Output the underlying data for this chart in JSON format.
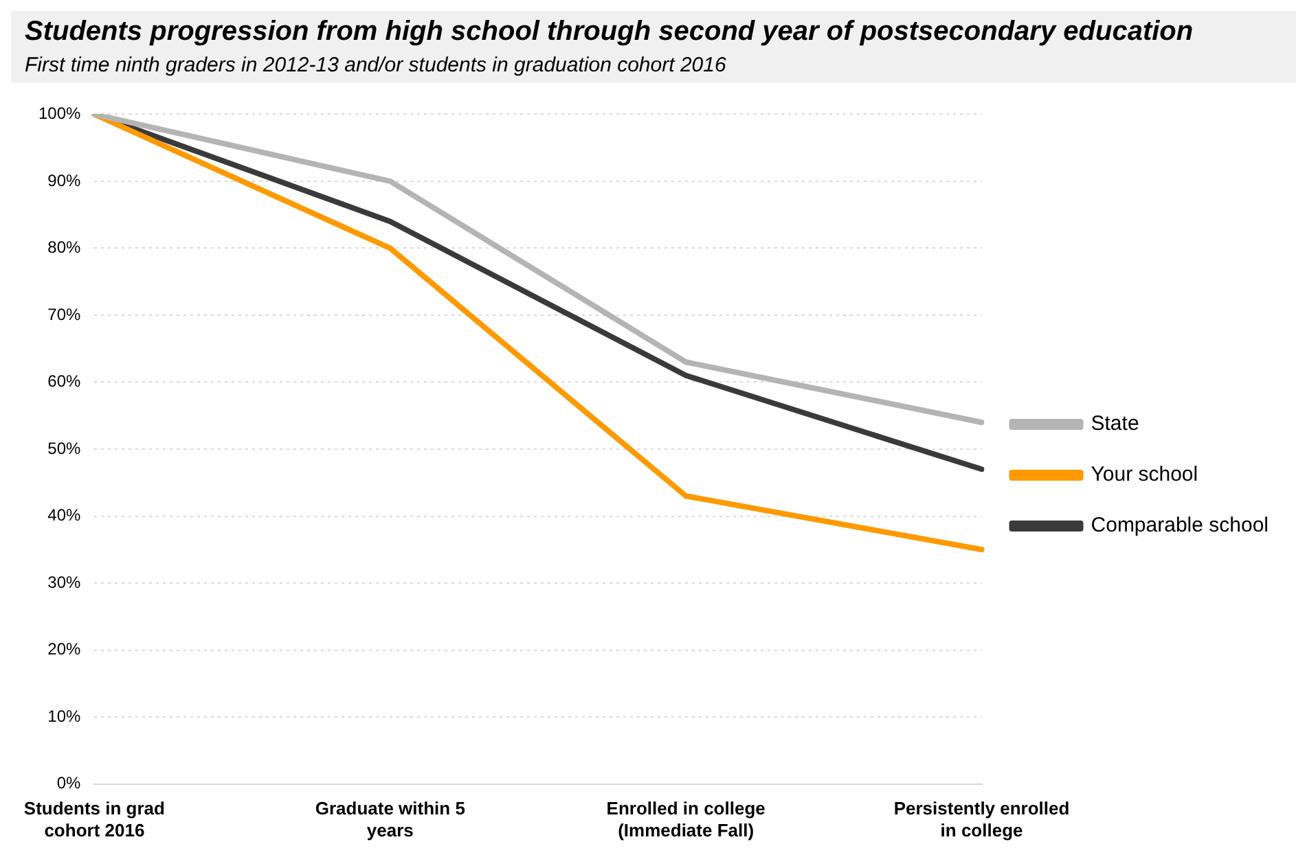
{
  "chart_data": {
    "type": "line",
    "title": "Students progression from high school through second year of postsecondary education",
    "subtitle": "First time ninth graders in 2012-13 and/or students in graduation cohort 2016",
    "categories": [
      "Students in grad cohort 2016",
      "Graduate within 5 years",
      "Enrolled in college (Immediate Fall)",
      "Persistently enrolled in college"
    ],
    "series": [
      {
        "name": "State",
        "color": "#b4b4b4",
        "values": [
          100,
          90,
          63,
          54
        ]
      },
      {
        "name": "Your school",
        "color": "#ff9900",
        "values": [
          100,
          80,
          43,
          35
        ]
      },
      {
        "name": "Comparable school",
        "color": "#3a3a3a",
        "values": [
          100,
          84,
          61,
          47
        ]
      }
    ],
    "ylim": [
      0,
      100
    ],
    "yticks": [
      {
        "value": 0,
        "label": "0%"
      },
      {
        "value": 10,
        "label": "10%"
      },
      {
        "value": 20,
        "label": "20%"
      },
      {
        "value": 30,
        "label": "30%"
      },
      {
        "value": 40,
        "label": "40%"
      },
      {
        "value": 50,
        "label": "50%"
      },
      {
        "value": 60,
        "label": "60%"
      },
      {
        "value": 70,
        "label": "70%"
      },
      {
        "value": 80,
        "label": "80%"
      },
      {
        "value": 90,
        "label": "90%"
      },
      {
        "value": 100,
        "label": "100%"
      }
    ],
    "grid": "y",
    "legend": "right",
    "marker": "none",
    "line_style": "solid"
  }
}
